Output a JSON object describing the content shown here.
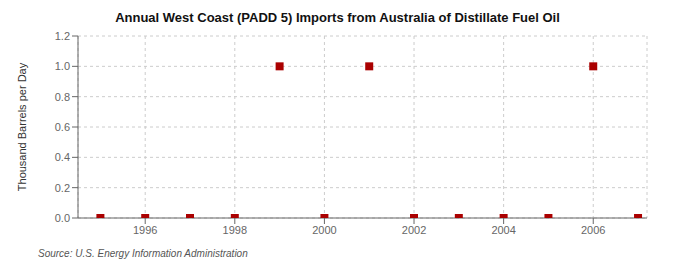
{
  "chart_data": {
    "type": "scatter",
    "title": "Annual West Coast (PADD 5) Imports from Australia of Distillate Fuel Oil",
    "ylabel": "Thousand Barrels per Day",
    "source": "Source: U.S. Energy Information Administration",
    "x": [
      1995,
      1996,
      1997,
      1998,
      1999,
      2000,
      2001,
      2002,
      2003,
      2004,
      2005,
      2006,
      2007
    ],
    "values": [
      0.0,
      0.0,
      0.0,
      0.0,
      1.0,
      0.0,
      1.0,
      0.0,
      0.0,
      0.0,
      0.0,
      1.0,
      0.0
    ],
    "xlim": [
      1994.5,
      2007.2
    ],
    "xticks": [
      1996,
      1998,
      2000,
      2002,
      2004,
      2006
    ],
    "ylim": [
      0.0,
      1.2
    ],
    "yticks": [
      {
        "value": 0.0,
        "label": "0.0"
      },
      0.2,
      0.4,
      0.6,
      0.8,
      {
        "value": 1.0,
        "label": "1.0"
      },
      1.2
    ],
    "color": "#aa0000",
    "marker": "square",
    "grid": true
  }
}
